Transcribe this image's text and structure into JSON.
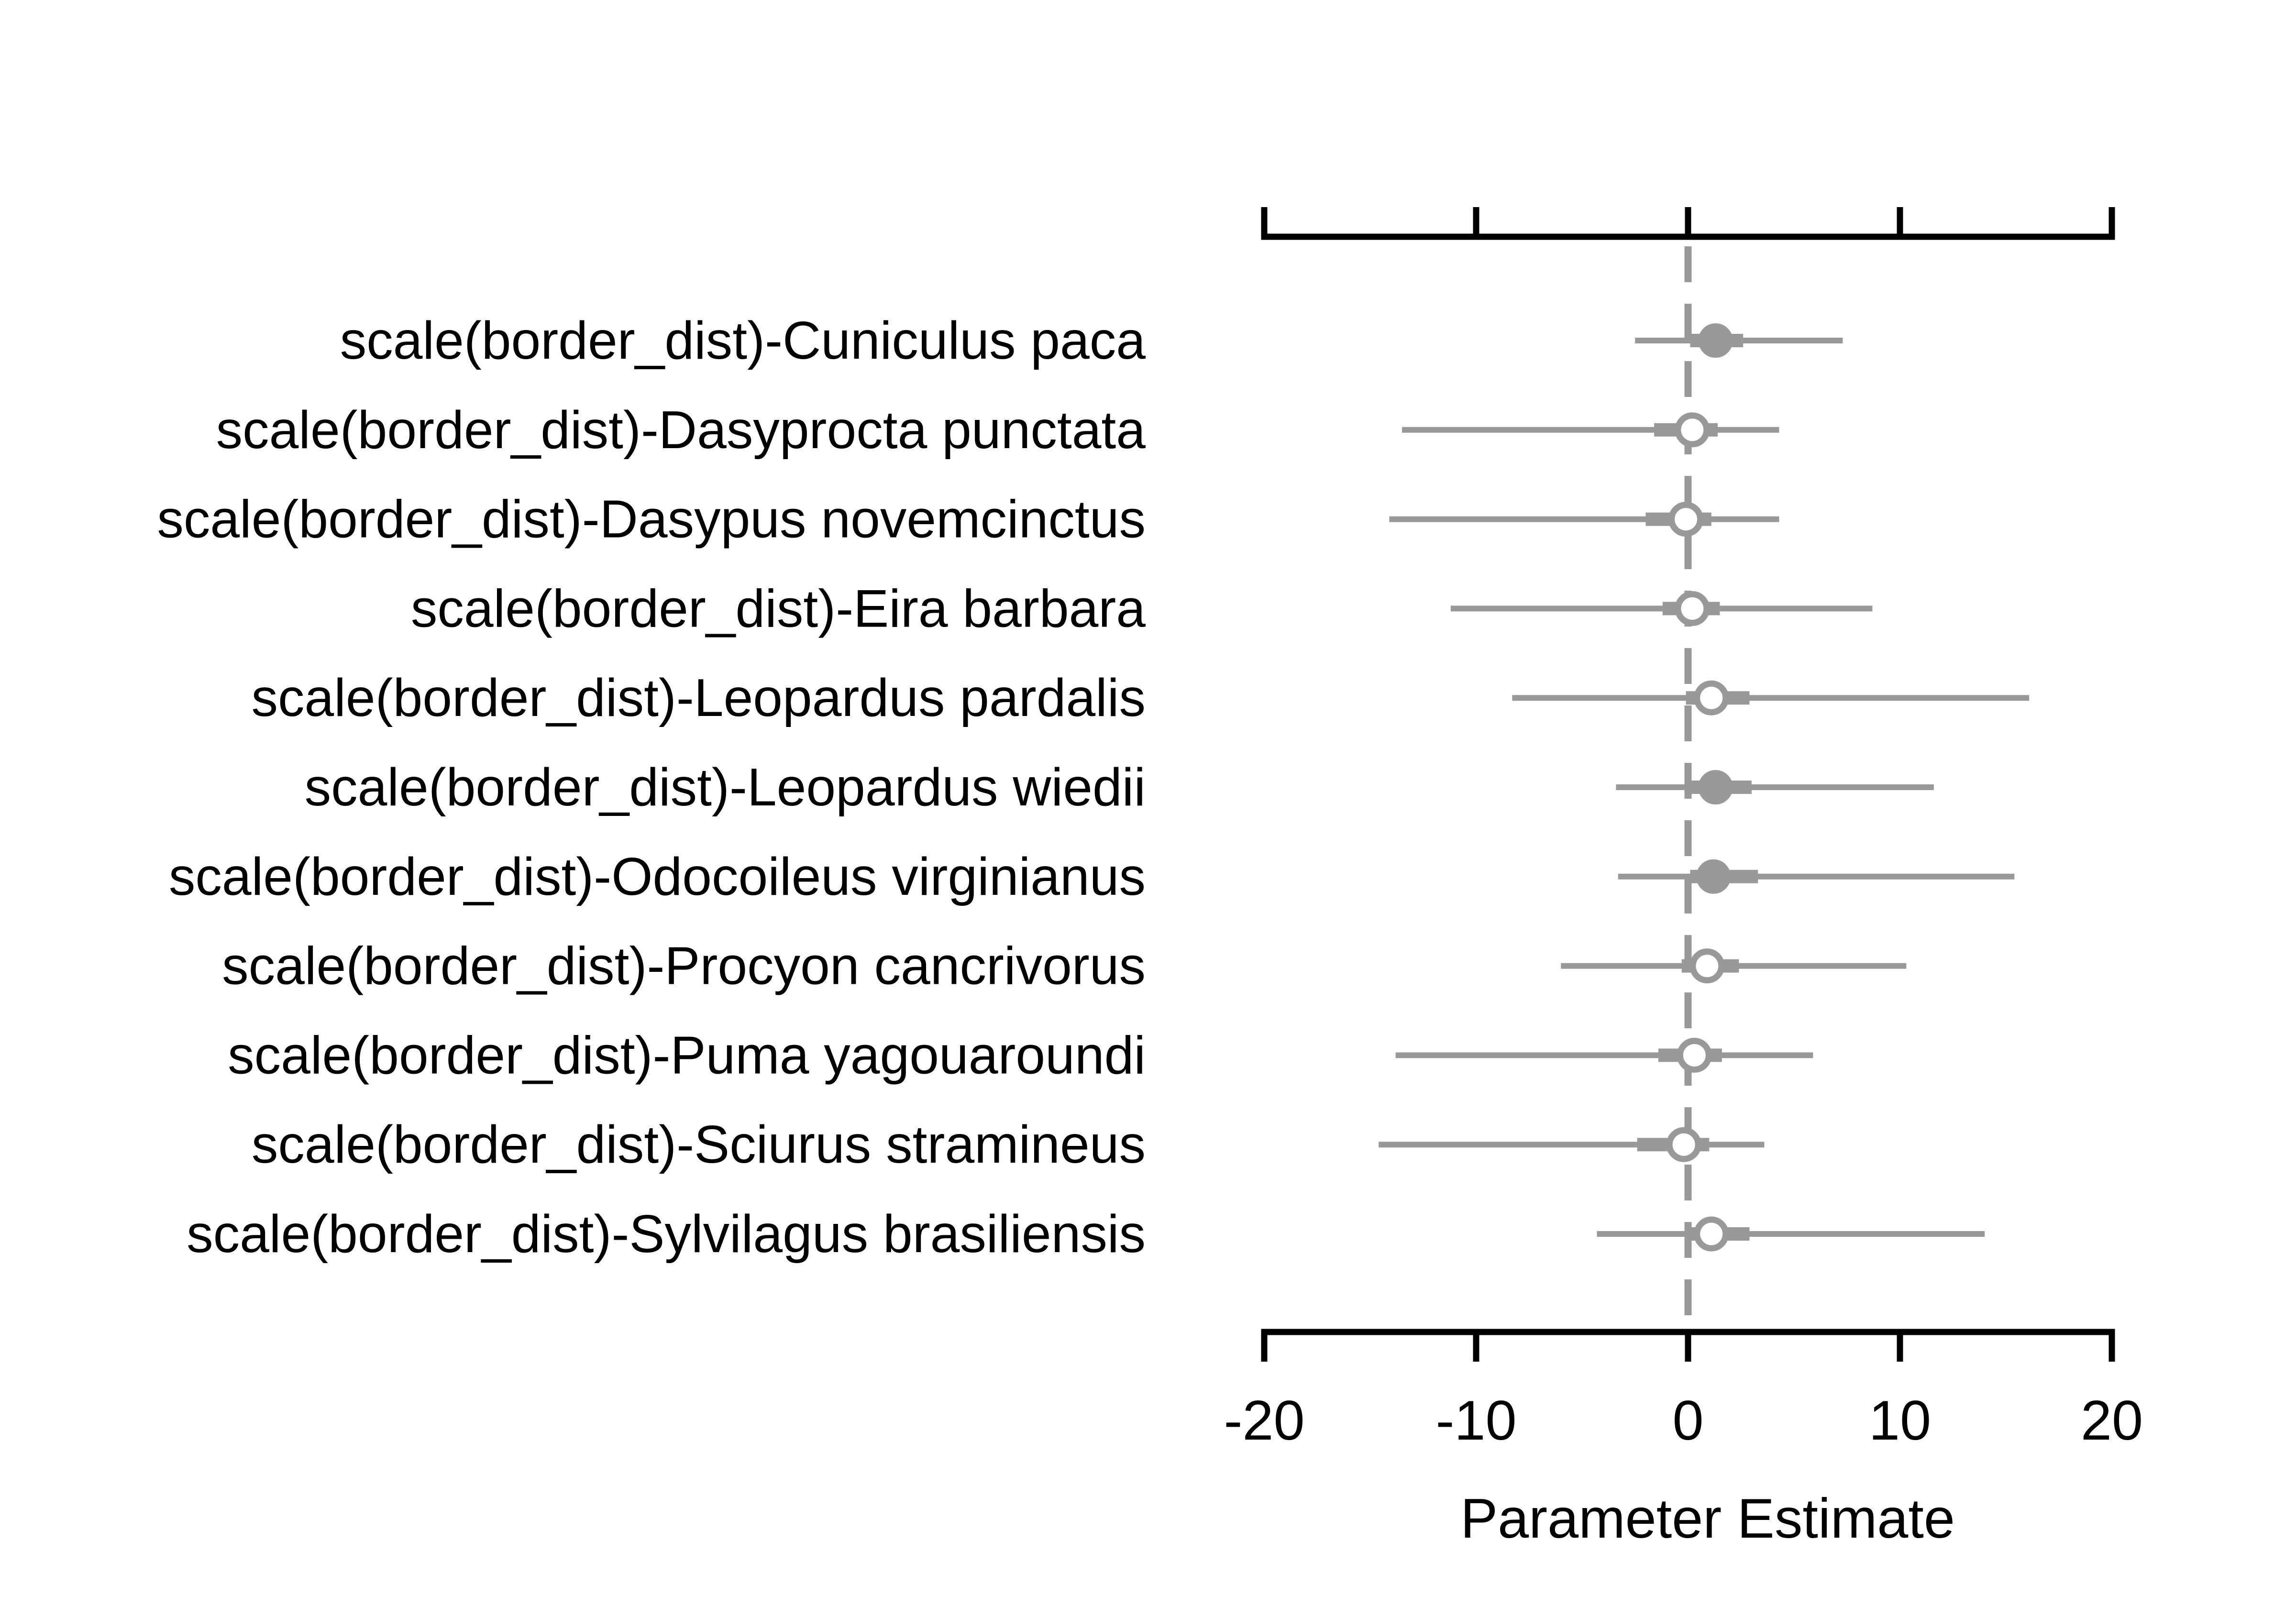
{
  "chart_data": {
    "type": "coefficient-plot",
    "xlabel": "Parameter Estimate",
    "xlim": [
      -20,
      20
    ],
    "xticks": [
      -20,
      -10,
      0,
      10,
      20
    ],
    "reference_line": 0,
    "colors": {
      "axis": "#000000",
      "marks": "#999999",
      "background": "#ffffff"
    },
    "rows": [
      {
        "label": "scale(border_dist)-Cuniculus paca",
        "estimate": 1.3,
        "inner": [
          0.1,
          2.6
        ],
        "outer": [
          -2.5,
          7.3
        ],
        "significant": true
      },
      {
        "label": "scale(border_dist)-Dasyprocta punctata",
        "estimate": 0.2,
        "inner": [
          -1.6,
          1.4
        ],
        "outer": [
          -13.5,
          4.3
        ],
        "significant": false
      },
      {
        "label": "scale(border_dist)-Dasypus novemcinctus",
        "estimate": -0.1,
        "inner": [
          -2.0,
          1.1
        ],
        "outer": [
          -14.1,
          4.3
        ],
        "significant": false
      },
      {
        "label": "scale(border_dist)-Eira barbara",
        "estimate": 0.2,
        "inner": [
          -1.2,
          1.5
        ],
        "outer": [
          -11.2,
          8.7
        ],
        "significant": false
      },
      {
        "label": "scale(border_dist)-Leopardus pardalis",
        "estimate": 1.1,
        "inner": [
          -0.1,
          2.9
        ],
        "outer": [
          -8.3,
          16.1
        ],
        "significant": false
      },
      {
        "label": "scale(border_dist)-Leopardus wiedii",
        "estimate": 1.3,
        "inner": [
          0.1,
          3.0
        ],
        "outer": [
          -3.4,
          11.6
        ],
        "significant": true
      },
      {
        "label": "scale(border_dist)-Odocoileus virginianus",
        "estimate": 1.2,
        "inner": [
          0.1,
          3.3
        ],
        "outer": [
          -3.3,
          15.4
        ],
        "significant": true
      },
      {
        "label": "scale(border_dist)-Procyon cancrivorus",
        "estimate": 0.9,
        "inner": [
          -0.3,
          2.4
        ],
        "outer": [
          -6.0,
          10.3
        ],
        "significant": false
      },
      {
        "label": "scale(border_dist)-Puma yagouaroundi",
        "estimate": 0.3,
        "inner": [
          -1.4,
          1.6
        ],
        "outer": [
          -13.8,
          5.9
        ],
        "significant": false
      },
      {
        "label": "scale(border_dist)-Sciurus stramineus",
        "estimate": -0.2,
        "inner": [
          -2.4,
          1.0
        ],
        "outer": [
          -14.6,
          3.6
        ],
        "significant": false
      },
      {
        "label": "scale(border_dist)-Sylvilagus brasiliensis",
        "estimate": 1.1,
        "inner": [
          -0.1,
          2.9
        ],
        "outer": [
          -4.3,
          14.0
        ],
        "significant": false
      }
    ]
  }
}
